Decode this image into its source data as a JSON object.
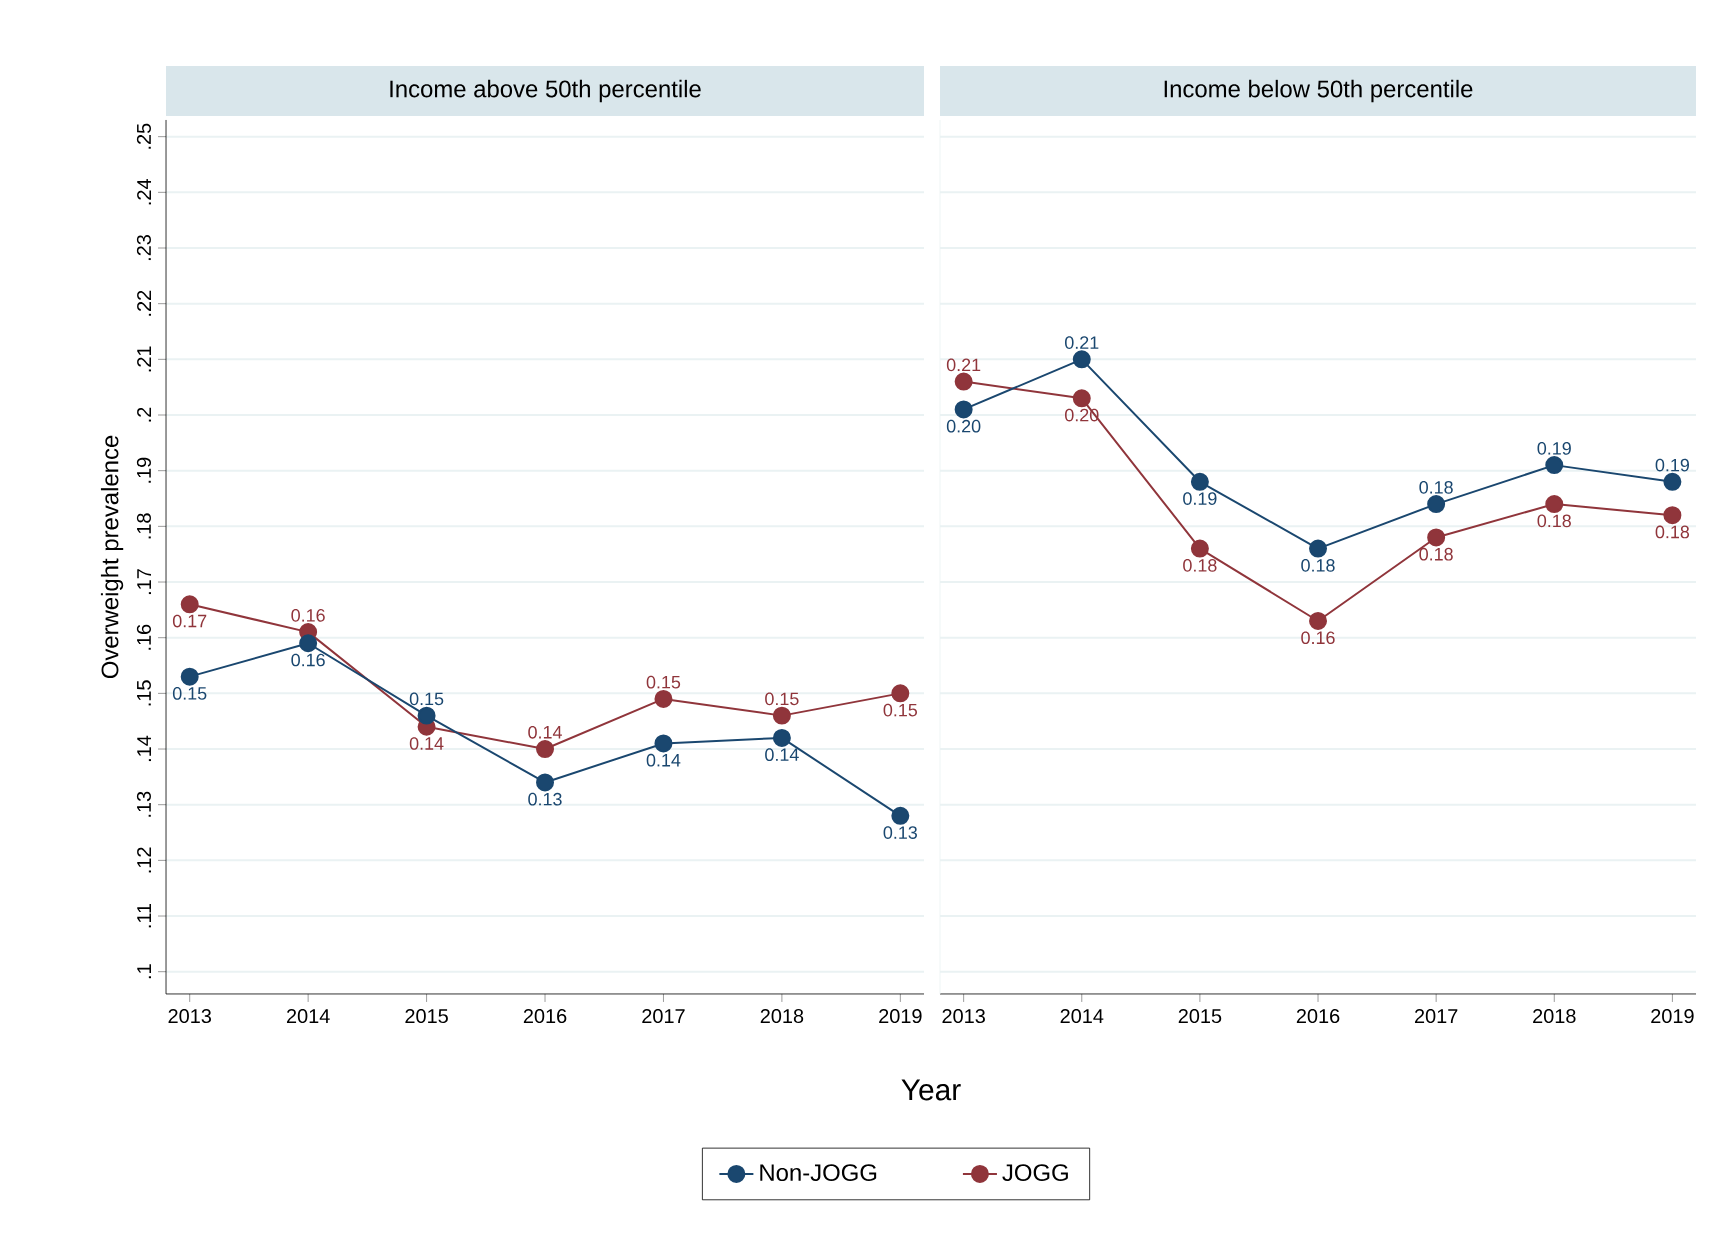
{
  "chart_data": [
    {
      "type": "line",
      "title": "Income above 50th percentile",
      "xlabel": "Year",
      "ylabel": "Overweight prevalence",
      "categories": [
        "2013",
        "2014",
        "2015",
        "2016",
        "2017",
        "2018",
        "2019"
      ],
      "series": [
        {
          "name": "Non-JOGG",
          "color": "#1a476f",
          "values": [
            0.153,
            0.159,
            0.146,
            0.134,
            0.141,
            0.142,
            0.128
          ],
          "value_labels": [
            "0.15",
            "0.16",
            "0.15",
            "0.13",
            "0.14",
            "0.14",
            "0.13"
          ]
        },
        {
          "name": "JOGG",
          "color": "#90353b",
          "values": [
            0.166,
            0.161,
            0.144,
            0.14,
            0.149,
            0.146,
            0.15
          ],
          "value_labels": [
            "0.17",
            "0.16",
            "0.14",
            "0.14",
            "0.15",
            "0.15",
            "0.15"
          ]
        }
      ],
      "ylim": [
        0.096,
        0.253
      ],
      "yticks": [
        {
          "value": 0.1,
          "label": ".1"
        },
        {
          "value": 0.11,
          "label": ".11"
        },
        {
          "value": 0.12,
          "label": ".12"
        },
        {
          "value": 0.13,
          "label": ".13"
        },
        {
          "value": 0.14,
          "label": ".14"
        },
        {
          "value": 0.15,
          "label": ".15"
        },
        {
          "value": 0.16,
          "label": ".16"
        },
        {
          "value": 0.17,
          "label": ".17"
        },
        {
          "value": 0.18,
          "label": ".18"
        },
        {
          "value": 0.19,
          "label": ".19"
        },
        {
          "value": 0.2,
          "label": ".2"
        },
        {
          "value": 0.21,
          "label": ".21"
        },
        {
          "value": 0.22,
          "label": ".22"
        },
        {
          "value": 0.23,
          "label": ".23"
        },
        {
          "value": 0.24,
          "label": ".24"
        },
        {
          "value": 0.25,
          "label": ".25"
        }
      ],
      "grid": "y",
      "marker": "circle",
      "legend": "bottom"
    },
    {
      "type": "line",
      "title": "Income below 50th percentile",
      "categories": [
        "2013",
        "2014",
        "2015",
        "2016",
        "2017",
        "2018",
        "2019"
      ],
      "series": [
        {
          "color": "#1a476f",
          "values": [
            0.201,
            0.21,
            0.188,
            0.176,
            0.184,
            0.191,
            0.188
          ],
          "value_labels": [
            "0.20",
            "0.21",
            "0.19",
            "0.18",
            "0.18",
            "0.19",
            "0.19"
          ]
        },
        {
          "color": "#90353b",
          "values": [
            0.206,
            0.203,
            0.176,
            0.163,
            0.178,
            0.184,
            0.182
          ],
          "value_labels": [
            "0.21",
            "0.20",
            "0.18",
            "0.16",
            "0.18",
            "0.18",
            "0.18"
          ]
        }
      ],
      "ylim": [
        0.096,
        0.253
      ],
      "yticks": [
        0.1,
        0.11,
        0.12,
        0.13,
        0.14,
        0.15,
        0.16,
        0.17,
        0.18,
        0.19,
        0.2,
        0.21,
        0.22,
        0.23,
        0.24,
        0.25
      ],
      "tick_labels": "x",
      "grid": "y",
      "marker": "circle"
    }
  ]
}
